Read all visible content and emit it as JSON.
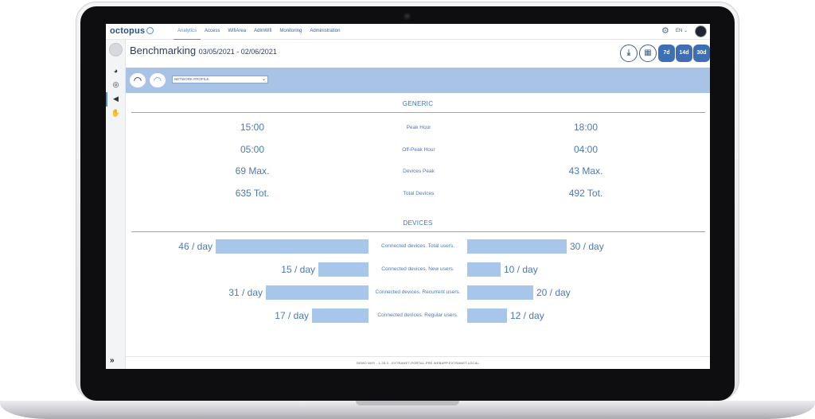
{
  "app": {
    "logo": "octopus"
  },
  "nav": [
    "Analytics",
    "Access",
    "WifiArea",
    "AdInWifi",
    "Monitoring",
    "Administration"
  ],
  "topbar": {
    "lang": "EN"
  },
  "page": {
    "title": "Benchmarking",
    "dates": "03/05/2021 - 02/06/2021"
  },
  "range_buttons": [
    "7d",
    "14d",
    "30d"
  ],
  "filter": {
    "profile_placeholder": "NETWORK PROFILE"
  },
  "generic": {
    "title": "GENERIC",
    "rows": [
      {
        "left": "15:00",
        "label": "Peak Hour",
        "right": "18:00"
      },
      {
        "left": "05:00",
        "label": "Off-Peak Hour",
        "right": "04:00"
      },
      {
        "left": "69 Max.",
        "label": "Devices Peak",
        "right": "43 Max."
      },
      {
        "left": "635 Tot.",
        "label": "Total Devices",
        "right": "492 Tot."
      }
    ]
  },
  "devices": {
    "title": "DEVICES",
    "rows": [
      {
        "left_value": 46,
        "left": "46 / day",
        "label": "Connected devices. Total users.",
        "right_value": 30,
        "right": "30 / day"
      },
      {
        "left_value": 15,
        "left": "15 / day",
        "label": "Connected devices. New users.",
        "right_value": 10,
        "right": "10 / day"
      },
      {
        "left_value": 31,
        "left": "31 / day",
        "label": "Connected devices. Recurrent users.",
        "right_value": 20,
        "right": "20 / day"
      },
      {
        "left_value": 17,
        "left": "17 / day",
        "label": "Connected devices. Regular users.",
        "right_value": 12,
        "right": "12 / day"
      }
    ]
  },
  "footer": {
    "text": "DEMO WIFI - 1.25.3 - EXTRANET-PORTAL-PRE.WEBAPP.EXTRANET.LOCAL"
  },
  "colors": {
    "accent": "#3e6fb4",
    "bar": "#a8c6e9",
    "filterbar": "#a8c3e6",
    "text": "#4c78b3"
  },
  "icons": {
    "settings": "gear-icon",
    "download": "download-icon",
    "calendar": "calendar-icon",
    "wifi": "wifi-icon",
    "expand": "double-chevron-right-icon"
  }
}
